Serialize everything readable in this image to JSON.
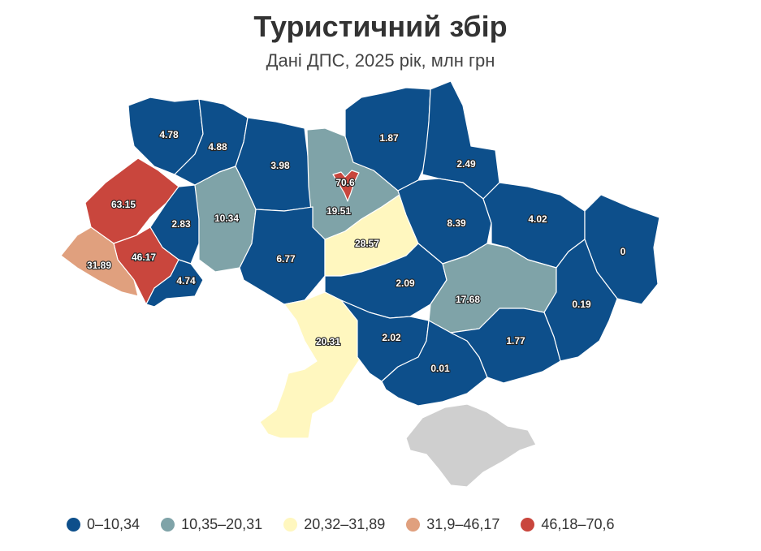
{
  "title": "Туристичний збір",
  "subtitle": "Дані ДПС, 2025 рік, млн грн",
  "colors": {
    "blue": "#0d4f8b",
    "grey": "#7fa3a8",
    "yellow": "#fff7bf",
    "salmon": "#e0a07e",
    "red": "#c9463d",
    "no_data": "#cfcfcf"
  },
  "legend": [
    {
      "label": "0–10,34",
      "color": "#0d4f8b"
    },
    {
      "label": "10,35–20,31",
      "color": "#7fa3a8"
    },
    {
      "label": "20,32–31,89",
      "color": "#fff7bf"
    },
    {
      "label": "31,9–46,17",
      "color": "#e0a07e"
    },
    {
      "label": "46,18–70,6",
      "color": "#c9463d"
    }
  ],
  "regions": [
    {
      "id": "volyn",
      "value": "4.78"
    },
    {
      "id": "rivne",
      "value": "4.88"
    },
    {
      "id": "zhytomyr",
      "value": "3.98"
    },
    {
      "id": "kyiv-oblast",
      "value": "19.51"
    },
    {
      "id": "kyiv-city",
      "value": "70.6"
    },
    {
      "id": "chernihiv",
      "value": "1.87"
    },
    {
      "id": "sumy",
      "value": "2.49"
    },
    {
      "id": "lviv",
      "value": "63.15"
    },
    {
      "id": "ternopil",
      "value": "2.83"
    },
    {
      "id": "khmelnytskyi",
      "value": "10.34"
    },
    {
      "id": "ivano-frankivsk",
      "value": "46.17"
    },
    {
      "id": "zakarpattia",
      "value": "31.89"
    },
    {
      "id": "chernivtsi",
      "value": "4.74"
    },
    {
      "id": "vinnytsia",
      "value": "6.77"
    },
    {
      "id": "cherkasy",
      "value": "28.57"
    },
    {
      "id": "poltava",
      "value": "8.39"
    },
    {
      "id": "kharkiv",
      "value": "4.02"
    },
    {
      "id": "luhansk",
      "value": "0"
    },
    {
      "id": "kirovohrad",
      "value": "2.09"
    },
    {
      "id": "dnipropetrovsk",
      "value": "17.68"
    },
    {
      "id": "donetsk",
      "value": "0.19"
    },
    {
      "id": "odesa",
      "value": "20.31"
    },
    {
      "id": "mykolaiv",
      "value": "2.02"
    },
    {
      "id": "kherson",
      "value": "0.01"
    },
    {
      "id": "zaporizhzhia",
      "value": "1.77"
    }
  ]
}
